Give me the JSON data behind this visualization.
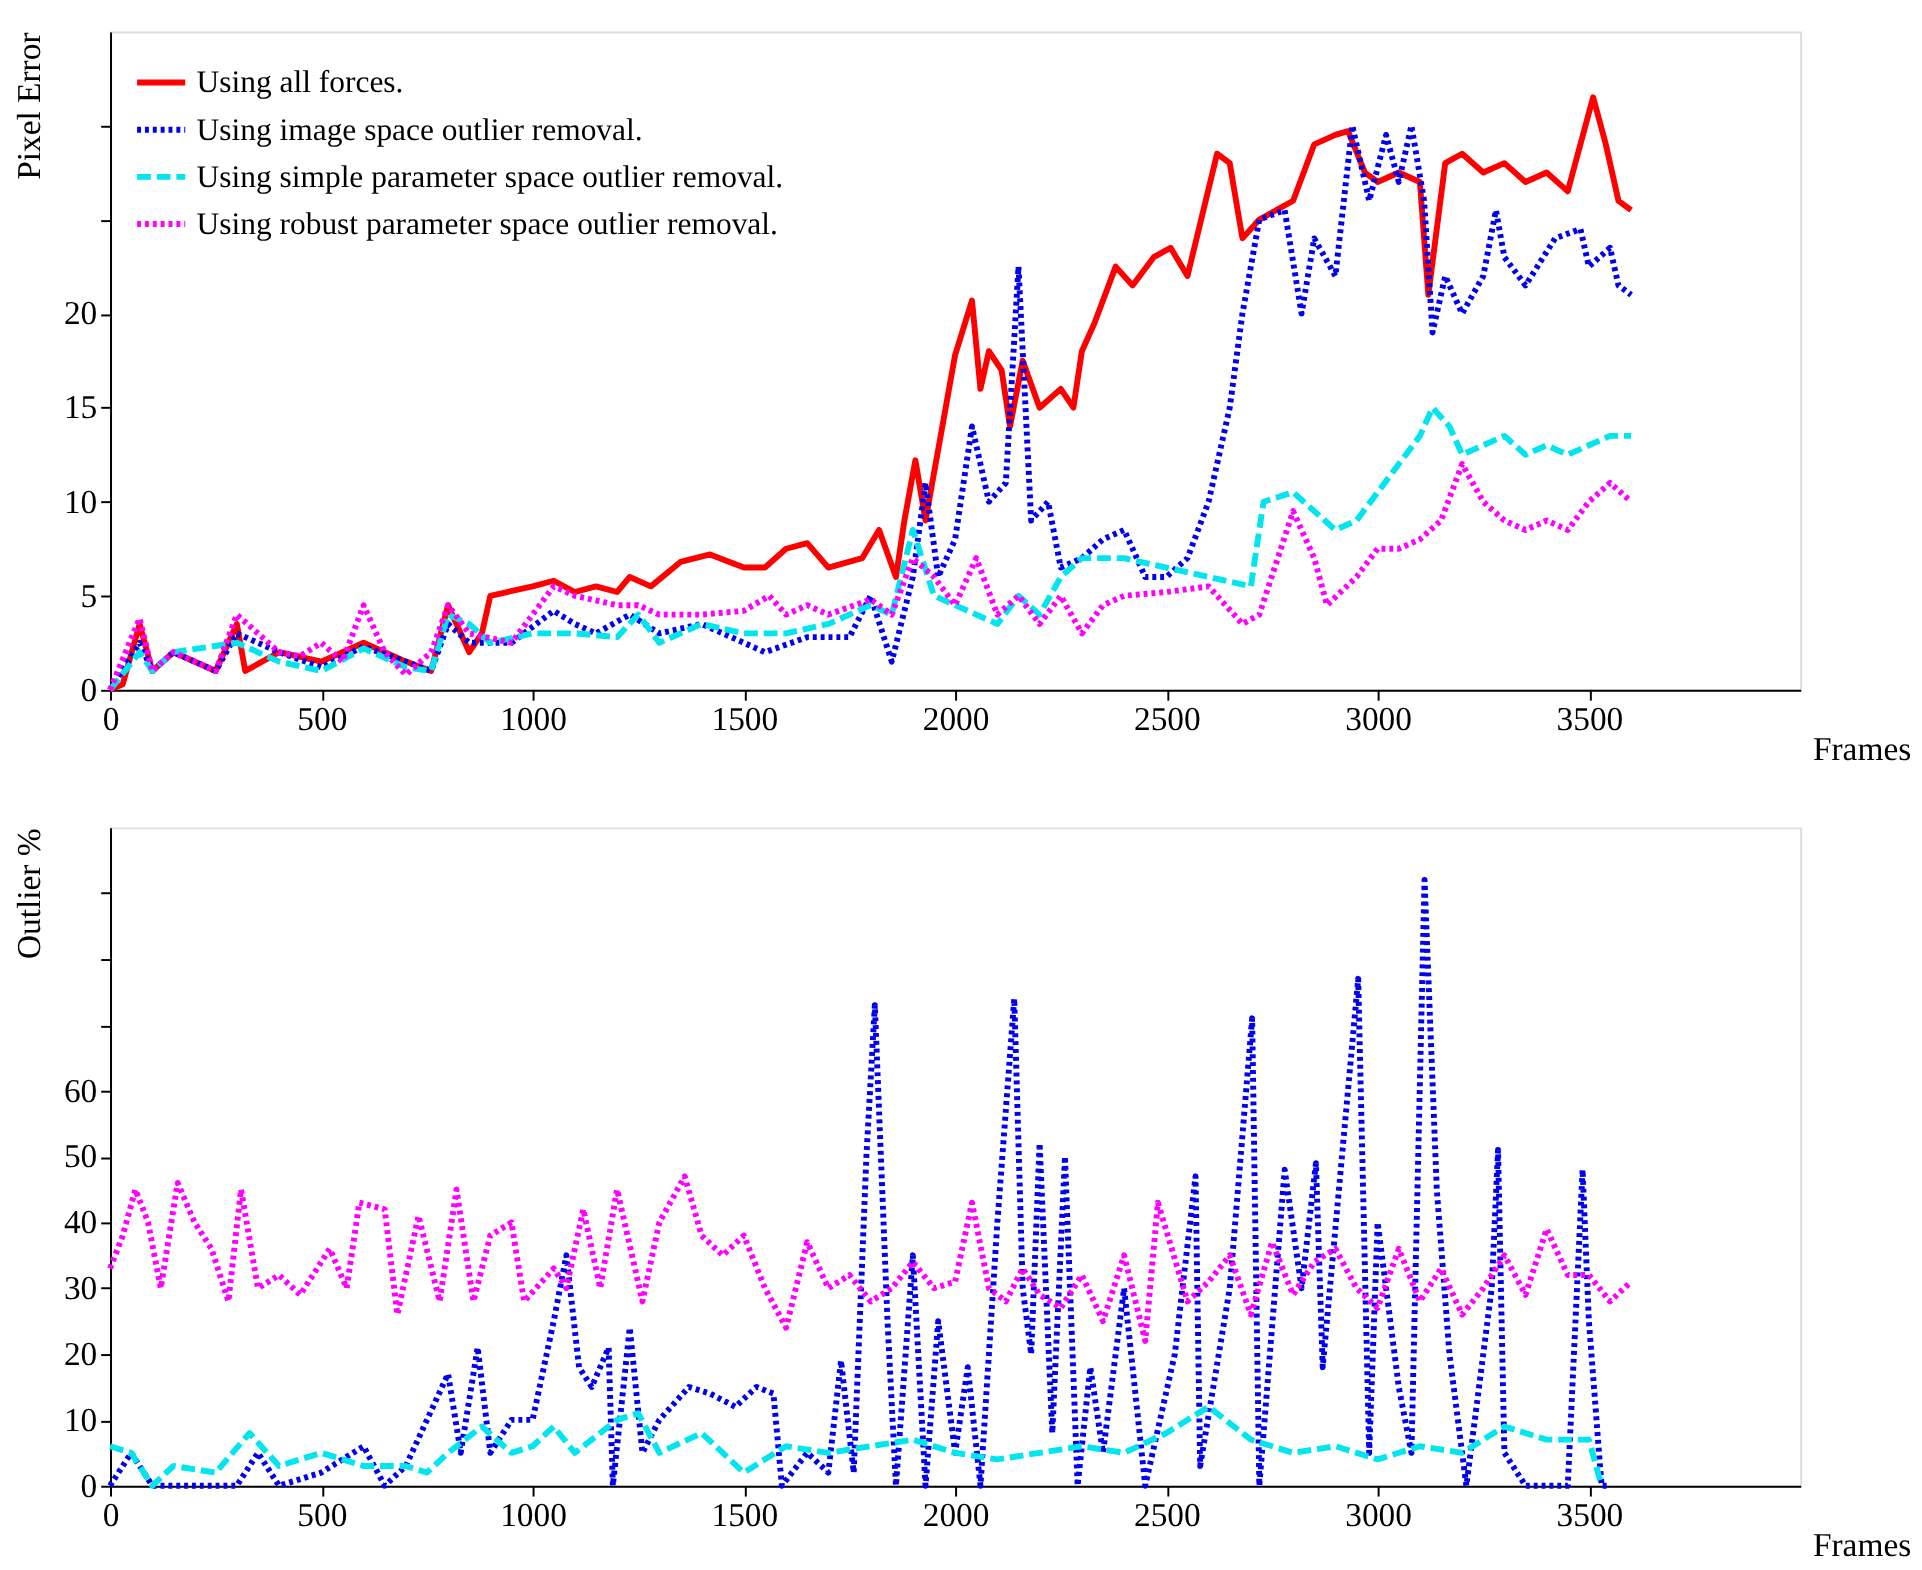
{
  "chart_data": [
    {
      "type": "line",
      "xlabel": "Frames",
      "ylabel": "Pixel Error",
      "xlim": [
        0,
        4000
      ],
      "xticks": [
        0,
        500,
        1000,
        1500,
        2000,
        2500,
        3000,
        3500
      ],
      "ylim": [
        0,
        35
      ],
      "yticks": [
        0,
        5,
        10,
        15,
        20,
        {
          "value": 25,
          "label": null
        },
        {
          "value": 30,
          "label": null
        }
      ],
      "grid": false,
      "legend": "top left",
      "marker": "none",
      "series": [
        {
          "name": "Using all forces.",
          "color": "#ff0000",
          "line_style": "solid",
          "x": [
            0,
            30,
            70,
            100,
            150,
            250,
            300,
            320,
            400,
            500,
            600,
            700,
            760,
            800,
            850,
            880,
            900,
            1000,
            1050,
            1100,
            1150,
            1200,
            1230,
            1280,
            1350,
            1420,
            1500,
            1550,
            1600,
            1650,
            1700,
            1780,
            1820,
            1860,
            1880,
            1906,
            1930,
            2000,
            2040,
            2060,
            2080,
            2110,
            2130,
            2160,
            2200,
            2250,
            2280,
            2300,
            2330,
            2380,
            2420,
            2470,
            2510,
            2550,
            2620,
            2650,
            2680,
            2720,
            2800,
            2850,
            2900,
            2930,
            2970,
            3000,
            3050,
            3100,
            3120,
            3160,
            3200,
            3250,
            3300,
            3350,
            3400,
            3450,
            3480,
            3510,
            3540,
            3570,
            3600
          ],
          "values": [
            0,
            0.3,
            3.5,
            1,
            2,
            1,
            3.5,
            1,
            2,
            1.5,
            2.5,
            1.5,
            1,
            4.5,
            2,
            3,
            5,
            5.5,
            5.8,
            5.2,
            5.5,
            5.2,
            6,
            5.5,
            6.8,
            7.2,
            6.5,
            6.5,
            7.5,
            7.8,
            6.5,
            7,
            8.5,
            6,
            9,
            12.2,
            9,
            17.8,
            20.7,
            16,
            18,
            17,
            14,
            17.5,
            15,
            16,
            15,
            18,
            19.5,
            22.5,
            21.5,
            23,
            23.5,
            22,
            28.5,
            28,
            24,
            25,
            26,
            29,
            29.5,
            29.7,
            27.5,
            27,
            27.5,
            27,
            21,
            28,
            28.5,
            27.5,
            28,
            27,
            27.5,
            26.5,
            29,
            31.5,
            29,
            26,
            25.5
          ]
        },
        {
          "name": "Using image space outlier removal.",
          "color": "#0000ee",
          "line_style": "dotted",
          "x": [
            0,
            70,
            100,
            150,
            250,
            300,
            400,
            500,
            600,
            700,
            760,
            800,
            850,
            950,
            1050,
            1100,
            1150,
            1230,
            1300,
            1400,
            1500,
            1550,
            1650,
            1750,
            1800,
            1850,
            1900,
            1930,
            1960,
            2000,
            2040,
            2080,
            2120,
            2150,
            2180,
            2220,
            2250,
            2300,
            2350,
            2400,
            2450,
            2500,
            2550,
            2600,
            2650,
            2680,
            2720,
            2780,
            2820,
            2850,
            2900,
            2940,
            2980,
            3020,
            3050,
            3080,
            3110,
            3130,
            3160,
            3200,
            3250,
            3280,
            3300,
            3350,
            3420,
            3480,
            3500,
            3550,
            3570,
            3600
          ],
          "values": [
            0,
            2.5,
            1,
            2,
            1,
            3,
            2,
            1.2,
            2.3,
            1.5,
            1,
            3.5,
            2.5,
            2.5,
            4.2,
            3.5,
            3,
            4,
            3,
            3.5,
            2.5,
            2,
            2.8,
            2.8,
            5,
            1.5,
            6,
            11,
            6,
            8,
            14,
            10,
            11,
            22.5,
            9,
            10,
            6.5,
            7,
            8,
            8.5,
            6,
            6,
            7,
            10,
            15,
            20,
            25,
            25.5,
            20,
            24,
            22,
            30,
            26,
            29.5,
            27,
            30,
            26,
            19,
            22,
            20,
            22,
            25.5,
            23,
            21.5,
            24,
            24.5,
            22.5,
            23.5,
            21.5,
            21
          ]
        },
        {
          "name": "Using simple parameter space outlier removal.",
          "color": "#00e5ee",
          "line_style": "dashed",
          "x": [
            0,
            70,
            100,
            150,
            300,
            400,
            500,
            600,
            700,
            760,
            800,
            850,
            900,
            1000,
            1100,
            1200,
            1250,
            1300,
            1400,
            1500,
            1600,
            1700,
            1800,
            1850,
            1900,
            1950,
            2000,
            2100,
            2150,
            2200,
            2250,
            2300,
            2400,
            2500,
            2600,
            2700,
            2730,
            2800,
            2850,
            2900,
            2950,
            3000,
            3050,
            3100,
            3130,
            3170,
            3200,
            3250,
            3300,
            3350,
            3400,
            3450,
            3500,
            3550,
            3600
          ],
          "values": [
            0,
            2,
            1,
            2,
            2.5,
            1.5,
            1,
            2.2,
            1.2,
            1,
            4,
            3.5,
            2.5,
            3,
            3,
            2.8,
            4,
            2.5,
            3.5,
            3,
            3,
            3.5,
            4.5,
            4,
            8.5,
            5,
            4.5,
            3.5,
            5,
            4,
            6,
            7,
            7,
            6.5,
            6,
            5.5,
            10,
            10.5,
            9.5,
            8.5,
            9,
            10.5,
            12,
            13.5,
            15,
            14,
            12.5,
            13,
            13.5,
            12.5,
            13,
            12.5,
            13,
            13.5,
            13.5
          ]
        },
        {
          "name": "Using robust parameter space outlier removal.",
          "color": "#ff00ff",
          "line_style": "dotted",
          "x": [
            0,
            70,
            100,
            150,
            250,
            300,
            400,
            450,
            500,
            550,
            600,
            650,
            700,
            760,
            800,
            850,
            950,
            1000,
            1050,
            1100,
            1200,
            1250,
            1300,
            1400,
            1500,
            1560,
            1600,
            1650,
            1700,
            1800,
            1850,
            1900,
            1950,
            2000,
            2050,
            2100,
            2150,
            2200,
            2250,
            2300,
            2350,
            2400,
            2500,
            2600,
            2680,
            2720,
            2800,
            2850,
            2880,
            2950,
            3000,
            3050,
            3100,
            3150,
            3200,
            3250,
            3300,
            3350,
            3400,
            3450,
            3500,
            3550,
            3600
          ],
          "values": [
            0,
            3.8,
            1,
            2,
            1,
            4,
            2,
            1.8,
            2.5,
            1.5,
            4.5,
            2,
            0.8,
            2,
            4.5,
            3,
            2.5,
            4,
            5.5,
            5,
            4.5,
            4.5,
            4,
            4,
            4.2,
            5,
            4,
            4.5,
            4,
            4.8,
            4,
            7,
            6,
            4.5,
            7,
            4,
            5,
            3.5,
            5,
            3,
            4.5,
            5,
            5.2,
            5.5,
            3.5,
            4,
            9.5,
            7,
            4.5,
            6,
            7.5,
            7.5,
            8,
            9,
            12,
            10,
            9,
            8.5,
            9,
            8.5,
            10,
            11,
            10
          ]
        }
      ]
    },
    {
      "type": "line",
      "xlabel": "Frames",
      "ylabel": "Outlier %",
      "xlim": [
        0,
        4000
      ],
      "xticks": [
        0,
        500,
        1000,
        1500,
        2000,
        2500,
        3000,
        3500
      ],
      "ylim": [
        0,
        100
      ],
      "yticks": [
        0,
        10,
        20,
        30,
        40,
        50,
        60,
        {
          "value": 70,
          "label": null
        },
        {
          "value": 80,
          "label": null
        },
        {
          "value": 90,
          "label": null
        }
      ],
      "grid": false,
      "legend": "top left",
      "marker": "none",
      "series": [
        {
          "name": "Using image space outlier removal.",
          "color": "#0000ee",
          "line_style": "dotted",
          "x": [
            0,
            50,
            100,
            200,
            300,
            350,
            400,
            500,
            600,
            650,
            700,
            750,
            800,
            830,
            870,
            900,
            950,
            1000,
            1050,
            1080,
            1110,
            1140,
            1180,
            1190,
            1230,
            1260,
            1300,
            1370,
            1420,
            1480,
            1530,
            1570,
            1590,
            1650,
            1700,
            1730,
            1760,
            1790,
            1810,
            1840,
            1860,
            1900,
            1930,
            1960,
            2000,
            2030,
            2060,
            2100,
            2140,
            2160,
            2180,
            2200,
            2230,
            2260,
            2290,
            2320,
            2350,
            2400,
            2450,
            2520,
            2569,
            2580,
            2650,
            2703,
            2720,
            2780,
            2820,
            2854,
            2870,
            2954,
            2980,
            3000,
            3050,
            3080,
            3111,
            3140,
            3170,
            3210,
            3270,
            3285,
            3300,
            3350,
            3450,
            3485,
            3500,
            3530,
            3550
          ],
          "values": [
            0,
            5,
            0,
            0,
            0,
            5,
            0,
            2,
            6,
            0,
            3,
            10,
            17,
            5,
            21,
            5,
            10,
            10,
            25,
            35,
            18,
            15,
            21,
            0,
            24,
            5,
            10,
            15,
            14,
            12,
            15,
            14,
            0,
            5,
            2,
            19,
            2,
            50,
            73,
            25,
            0,
            35,
            0,
            25,
            5,
            18,
            0,
            40,
            74,
            30,
            20,
            52,
            8,
            50,
            0,
            18,
            5,
            30,
            0,
            20,
            47,
            3,
            30,
            71,
            0,
            48,
            30,
            49,
            18,
            77,
            5,
            40,
            15,
            5,
            92,
            45,
            20,
            0,
            30,
            51,
            5,
            0,
            0,
            48,
            25,
            0,
            0
          ]
        },
        {
          "name": "Using simple parameter space outlier removal.",
          "color": "#00e5ee",
          "line_style": "dashed",
          "x": [
            0,
            50,
            100,
            150,
            250,
            330,
            400,
            500,
            600,
            700,
            750,
            800,
            880,
            950,
            1000,
            1050,
            1100,
            1200,
            1250,
            1300,
            1400,
            1500,
            1600,
            1700,
            1800,
            1900,
            2000,
            2100,
            2200,
            2300,
            2400,
            2500,
            2600,
            2700,
            2800,
            2900,
            3000,
            3100,
            3200,
            3300,
            3400,
            3500,
            3530
          ],
          "values": [
            6,
            5,
            0,
            3,
            2,
            8,
            3,
            5,
            3,
            3,
            2,
            5,
            9,
            5,
            6,
            9,
            5,
            10,
            11,
            5,
            8,
            2,
            6,
            5,
            6,
            7,
            5,
            4,
            5,
            6,
            5,
            8,
            12,
            7,
            5,
            6,
            4,
            6,
            5,
            9,
            7,
            7,
            0
          ]
        },
        {
          "name": "Using robust parameter space outlier removal.",
          "color": "#ff00ff",
          "line_style": "dotted",
          "x": [
            0,
            30,
            60,
            90,
            120,
            160,
            200,
            240,
            280,
            310,
            350,
            400,
            450,
            520,
            560,
            590,
            650,
            680,
            730,
            780,
            820,
            860,
            900,
            950,
            980,
            1050,
            1080,
            1120,
            1160,
            1200,
            1260,
            1300,
            1360,
            1400,
            1450,
            1500,
            1550,
            1600,
            1650,
            1700,
            1750,
            1800,
            1850,
            1900,
            1950,
            2000,
            2040,
            2080,
            2120,
            2160,
            2200,
            2250,
            2300,
            2350,
            2400,
            2450,
            2480,
            2550,
            2600,
            2650,
            2700,
            2750,
            2800,
            2850,
            2900,
            2950,
            3000,
            3050,
            3100,
            3150,
            3200,
            3250,
            3300,
            3350,
            3400,
            3450,
            3500,
            3550,
            3600
          ],
          "values": [
            33,
            38,
            45,
            40,
            30,
            46,
            40,
            36,
            28,
            45,
            30,
            32,
            29,
            36,
            30,
            43,
            42,
            26,
            41,
            28,
            45,
            28,
            38,
            40,
            28,
            33,
            30,
            42,
            30,
            45,
            28,
            40,
            47,
            38,
            35,
            38,
            30,
            24,
            37,
            30,
            32,
            28,
            30,
            34,
            30,
            31,
            43,
            30,
            28,
            33,
            29,
            27,
            32,
            25,
            35,
            22,
            43,
            28,
            31,
            35,
            26,
            37,
            29,
            34,
            36,
            30,
            27,
            36,
            28,
            33,
            26,
            30,
            35,
            29,
            39,
            32,
            32,
            28,
            31
          ]
        }
      ]
    }
  ]
}
